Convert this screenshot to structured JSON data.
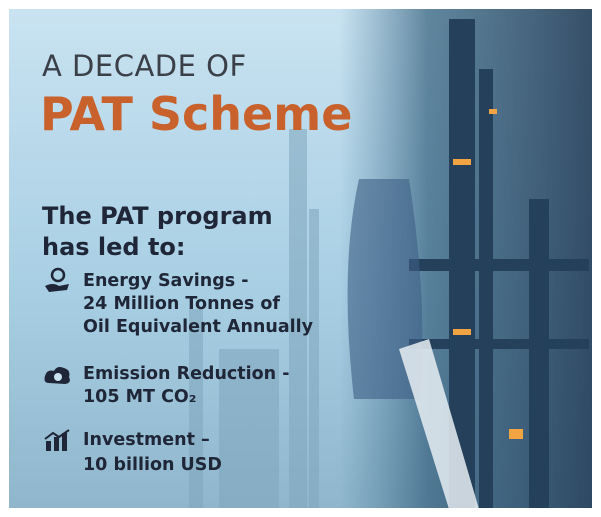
{
  "header": {
    "line1": "A DECADE OF",
    "line2": "PAT Scheme"
  },
  "intro": [
    "The PAT program",
    "has led to:"
  ],
  "items": [
    [
      "Energy Savings -",
      "24 Million Tonnes of",
      "Oil Equivalent Annually"
    ],
    [
      "Emission Reduction -",
      "105 MT CO₂"
    ],
    [
      "Investment –",
      "10 billion USD"
    ]
  ]
}
